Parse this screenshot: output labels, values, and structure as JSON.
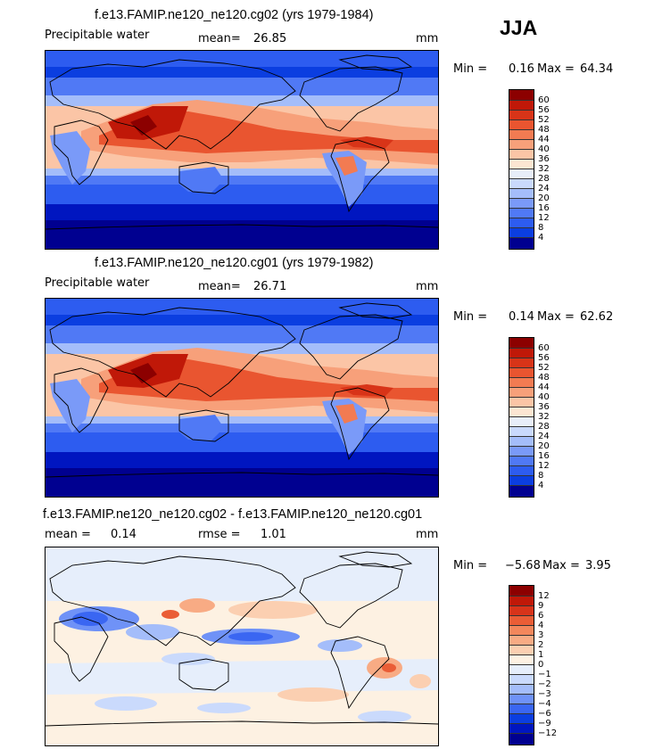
{
  "season": "JJA",
  "colors": {
    "main": [
      "#000090",
      "#0016c0",
      "#0b3ee0",
      "#2d5cf0",
      "#5079f5",
      "#7a9af8",
      "#a4bdfa",
      "#c9d9fc",
      "#e8eef9",
      "#fce6d2",
      "#fbc5a6",
      "#f7a07a",
      "#f27b52",
      "#e95530",
      "#d83418",
      "#c01808",
      "#8c0000"
    ],
    "diff": [
      "#000090",
      "#0016c0",
      "#0b3ee0",
      "#3a66f2",
      "#6f92f7",
      "#a4bdfa",
      "#cadafc",
      "#e6eefb",
      "#fdf1e2",
      "#fbcfb1",
      "#f8ab84",
      "#f3875c",
      "#ea5d36",
      "#d8341a",
      "#c01808",
      "#8c0000"
    ]
  },
  "chart_data": [
    {
      "type": "heatmap",
      "title": "f.e13.FAMIP.ne120_ne120.cg02 (yrs 1979-1984)",
      "variable": "Precipitable water",
      "mean_label": "mean=",
      "mean": "26.85",
      "units": "mm",
      "min_label": "Min =",
      "min": "0.16",
      "max_label": "Max =",
      "max": "64.34",
      "levels": [
        "60",
        "56",
        "52",
        "48",
        "44",
        "40",
        "36",
        "32",
        "28",
        "24",
        "20",
        "16",
        "12",
        "8",
        "4"
      ]
    },
    {
      "type": "heatmap",
      "title": "f.e13.FAMIP.ne120_ne120.cg01 (yrs 1979-1982)",
      "variable": "Precipitable water",
      "mean_label": "mean=",
      "mean": "26.71",
      "units": "mm",
      "min_label": "Min =",
      "min": "0.14",
      "max_label": "Max =",
      "max": "62.62",
      "levels": [
        "60",
        "56",
        "52",
        "48",
        "44",
        "40",
        "36",
        "32",
        "28",
        "24",
        "20",
        "16",
        "12",
        "8",
        "4"
      ]
    },
    {
      "type": "heatmap",
      "title": "f.e13.FAMIP.ne120_ne120.cg02 - f.e13.FAMIP.ne120_ne120.cg01",
      "mean_label": "mean =",
      "mean": "0.14",
      "rmse_label": "rmse =",
      "rmse": "1.01",
      "units": "mm",
      "min_label": "Min =",
      "min": "−5.68",
      "max_label": "Max =",
      "max": "3.95",
      "levels": [
        "12",
        "9",
        "6",
        "4",
        "3",
        "2",
        "1",
        "0",
        "−1",
        "−2",
        "−3",
        "−4",
        "−6",
        "−9",
        "−12"
      ]
    }
  ]
}
